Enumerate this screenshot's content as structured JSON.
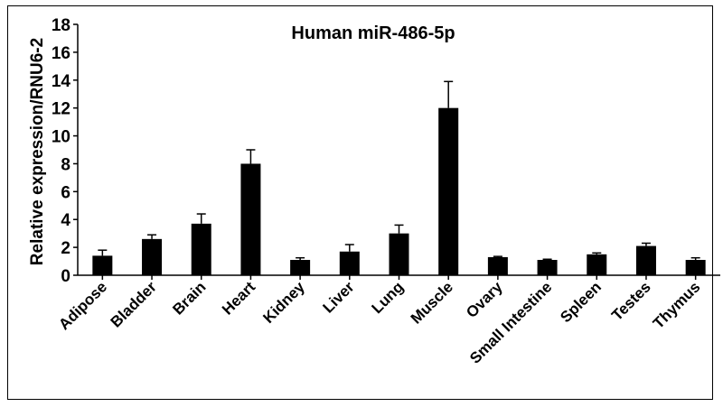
{
  "chart_data": {
    "type": "bar",
    "title": "Human miR-486-5p",
    "xlabel": "",
    "ylabel": "Relative expression/RNU6-2",
    "ylim": [
      0,
      18
    ],
    "yticks": [
      0,
      2,
      4,
      6,
      8,
      10,
      12,
      14,
      16,
      18
    ],
    "categories": [
      "Adipose",
      "Bladder",
      "Brain",
      "Heart",
      "Kidney",
      "Liver",
      "Lung",
      "Muscle",
      "Ovary",
      "Small Intestine",
      "Spleen",
      "Testes",
      "Thymus"
    ],
    "values": [
      1.4,
      2.6,
      3.7,
      8.0,
      1.1,
      1.7,
      3.0,
      12.0,
      1.3,
      1.1,
      1.5,
      2.1,
      1.1
    ],
    "errors": [
      0.4,
      0.3,
      0.7,
      1.0,
      0.15,
      0.5,
      0.6,
      1.9,
      0.05,
      0.05,
      0.1,
      0.2,
      0.15
    ],
    "bar_color": "#000000",
    "grid": false,
    "legend": "none"
  }
}
